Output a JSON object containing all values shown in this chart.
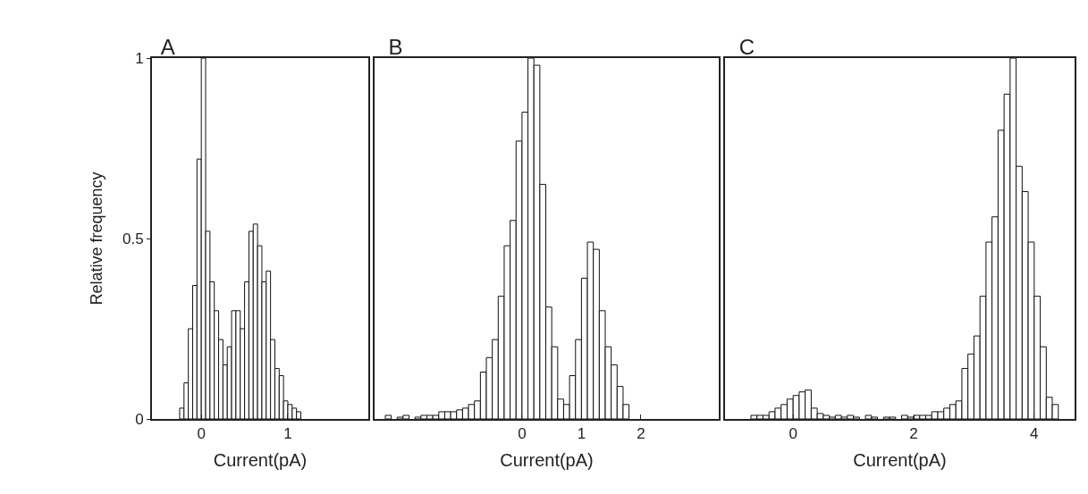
{
  "chart_data": [
    {
      "type": "histogram",
      "title": "A",
      "xlabel": "Current(pA)",
      "ylabel": "Relative frequency",
      "color": "#ffffff",
      "bins": [
        -0.25,
        -0.2,
        -0.15,
        -0.1,
        -0.05,
        0,
        0.05,
        0.1,
        0.15,
        0.2,
        0.25,
        0.3,
        0.35,
        0.4,
        0.45,
        0.5,
        0.55,
        0.6,
        0.65,
        0.7,
        0.75,
        0.8,
        0.85,
        0.9,
        0.95,
        1.0,
        1.05,
        1.1,
        1.15
      ],
      "values": [
        0.03,
        0.1,
        0.25,
        0.37,
        0.72,
        1.0,
        0.52,
        0.38,
        0.3,
        0.22,
        0.15,
        0.2,
        0.3,
        0.3,
        0.25,
        0.38,
        0.52,
        0.54,
        0.48,
        0.38,
        0.41,
        0.22,
        0.14,
        0.12,
        0.05,
        0.04,
        0.03,
        0.02
      ],
      "xlim": [
        -0.57,
        1.93
      ],
      "xticks": [
        0,
        1
      ],
      "ylim": [
        0,
        1
      ],
      "yticks": [
        0,
        0.5,
        1
      ],
      "grid": false
    },
    {
      "type": "histogram",
      "title": "B",
      "xlabel": "Current(pA)",
      "color": "#ffffff",
      "bins": [
        -2.4,
        -2.3,
        -2.2,
        -2.1,
        -2.0,
        -1.9,
        -1.8,
        -1.7,
        -1.6,
        -1.5,
        -1.4,
        -1.3,
        -1.2,
        -1.1,
        -1.0,
        -0.9,
        -0.8,
        -0.7,
        -0.6,
        -0.5,
        -0.4,
        -0.3,
        -0.2,
        -0.1,
        0,
        0.1,
        0.2,
        0.3,
        0.4,
        0.5,
        0.6,
        0.7,
        0.8,
        0.9,
        1.0,
        1.1,
        1.2,
        1.3,
        1.4,
        1.5,
        1.6,
        1.7,
        1.8
      ],
      "values": [
        0,
        0.01,
        0,
        0.005,
        0.01,
        0,
        0.005,
        0.01,
        0.01,
        0.01,
        0.02,
        0.02,
        0.02,
        0.025,
        0.03,
        0.04,
        0.05,
        0.13,
        0.17,
        0.22,
        0.34,
        0.48,
        0.55,
        0.77,
        0.85,
        1.0,
        0.98,
        0.65,
        0.31,
        0.2,
        0.055,
        0.04,
        0.12,
        0.22,
        0.39,
        0.49,
        0.47,
        0.3,
        0.2,
        0.15,
        0.09,
        0.04
      ],
      "xlim": [
        -2.48,
        3.31
      ],
      "xticks": [
        0,
        1,
        2
      ],
      "ylim": [
        0,
        1
      ],
      "yticks": [
        0,
        0.5,
        1
      ],
      "tick_labels": "x",
      "grid": false
    },
    {
      "type": "histogram",
      "title": "C",
      "xlabel": "Current(pA)",
      "color": "#ffffff",
      "bins": [
        -0.7,
        -0.6,
        -0.5,
        -0.4,
        -0.3,
        -0.2,
        -0.1,
        0,
        0.1,
        0.2,
        0.3,
        0.4,
        0.5,
        0.6,
        0.7,
        0.8,
        0.9,
        1.0,
        1.1,
        1.2,
        1.3,
        1.4,
        1.5,
        1.6,
        1.7,
        1.8,
        1.9,
        2.0,
        2.1,
        2.2,
        2.3,
        2.4,
        2.5,
        2.6,
        2.7,
        2.8,
        2.9,
        3.0,
        3.1,
        3.2,
        3.3,
        3.4,
        3.5,
        3.6,
        3.7,
        3.8,
        3.9,
        4.0,
        4.1,
        4.2,
        4.3,
        4.4
      ],
      "values": [
        0.01,
        0.01,
        0.01,
        0.02,
        0.03,
        0.04,
        0.055,
        0.065,
        0.075,
        0.08,
        0.03,
        0.015,
        0.01,
        0.005,
        0.01,
        0.005,
        0.01,
        0.005,
        0,
        0.01,
        0.005,
        0,
        0.005,
        0.005,
        0,
        0.01,
        0.005,
        0.01,
        0.01,
        0.01,
        0.02,
        0.02,
        0.03,
        0.04,
        0.05,
        0.14,
        0.18,
        0.23,
        0.34,
        0.49,
        0.56,
        0.8,
        0.9,
        1.0,
        0.7,
        0.63,
        0.49,
        0.34,
        0.2,
        0.06,
        0.04
      ],
      "xlim": [
        -1.13,
        4.67
      ],
      "xticks": [
        0,
        2,
        4
      ],
      "ylim": [
        0,
        1
      ],
      "yticks": [
        0,
        0.5,
        1
      ],
      "tick_labels": "x",
      "grid": false
    }
  ]
}
